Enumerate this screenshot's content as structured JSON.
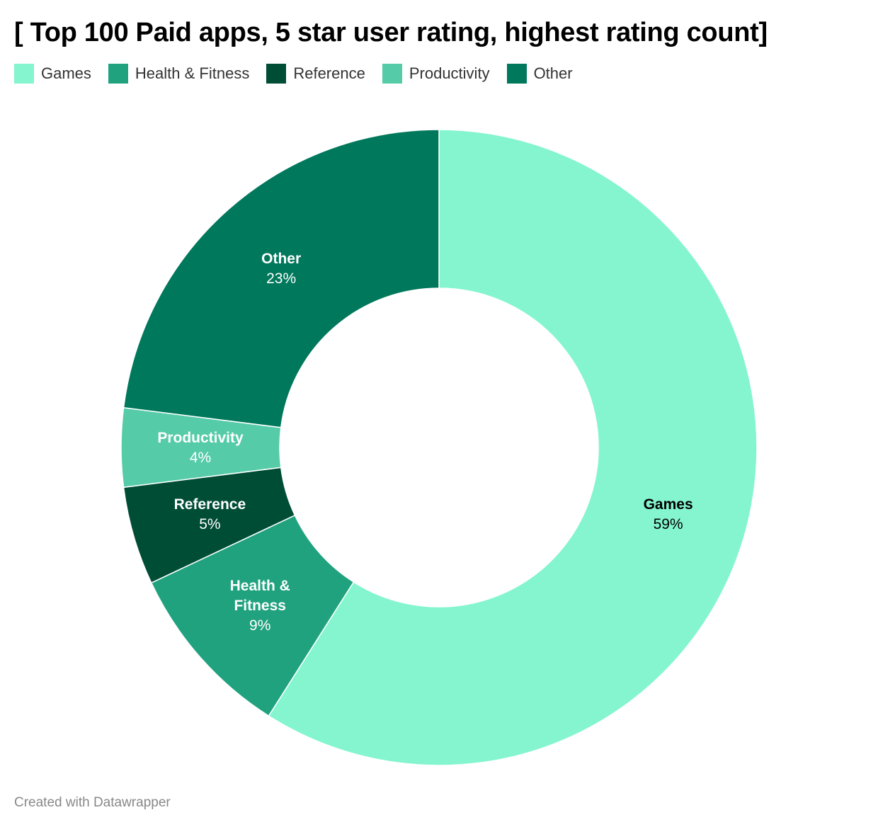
{
  "chart_data": {
    "type": "pie",
    "title": "[ Top 100 Paid apps, 5 star user rating, highest rating count]",
    "donut": true,
    "legend_position": "top-left",
    "series": [
      {
        "name": "Games",
        "value": 59,
        "label": "59%",
        "color": "#84f5cf",
        "text_color": "#000000"
      },
      {
        "name": "Health & Fitness",
        "value": 9,
        "label": "9%",
        "color": "#21a27f",
        "text_color": "#ffffff"
      },
      {
        "name": "Reference",
        "value": 5,
        "label": "5%",
        "color": "#004d36",
        "text_color": "#ffffff"
      },
      {
        "name": "Productivity",
        "value": 4,
        "label": "4%",
        "color": "#55cba8",
        "text_color": "#ffffff"
      },
      {
        "name": "Other",
        "value": 23,
        "label": "23%",
        "color": "#00785c",
        "text_color": "#ffffff"
      }
    ]
  },
  "legend": [
    {
      "label": "Games",
      "color": "#84f5cf"
    },
    {
      "label": "Health & Fitness",
      "color": "#21a27f"
    },
    {
      "label": "Reference",
      "color": "#004d36"
    },
    {
      "label": "Productivity",
      "color": "#55cba8"
    },
    {
      "label": "Other",
      "color": "#00785c"
    }
  ],
  "footer": {
    "credit": "Created with Datawrapper"
  }
}
